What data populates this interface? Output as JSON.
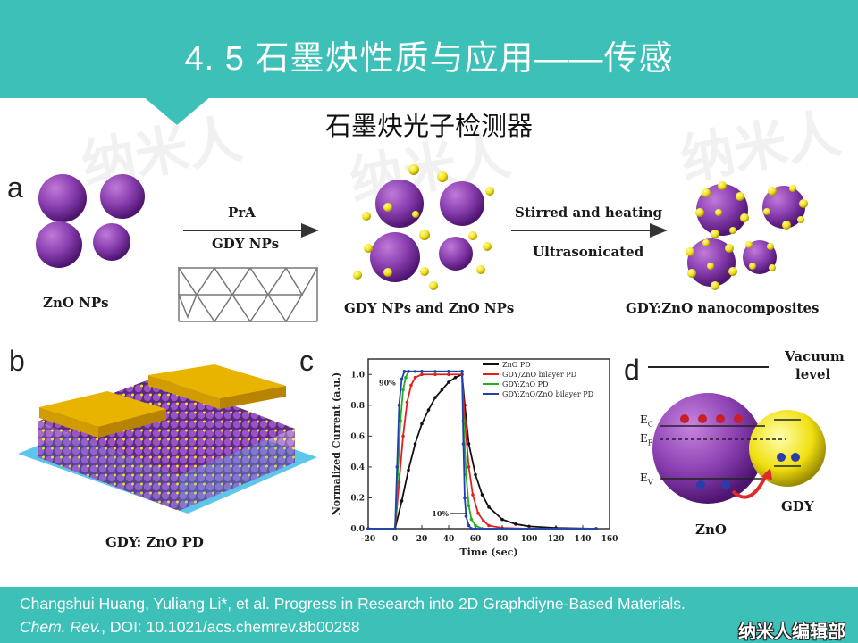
{
  "header": {
    "title": "4. 5  石墨炔性质与应用——传感",
    "subtitle": "石墨炔光子检测器"
  },
  "watermark": "纳米人",
  "panel_a": {
    "letter": "a",
    "znO_label": "ZnO NPs",
    "arrow1_top": "PrA",
    "arrow1_bottom": "GDY NPs",
    "mix_label": "GDY NPs and ZnO NPs",
    "arrow2_top": "Stirred and heating",
    "arrow2_bottom": "Ultrasonicated",
    "composite_label": "GDY:ZnO  nanocomposites"
  },
  "panel_b": {
    "letter": "b",
    "label": "GDY: ZnO PD"
  },
  "panel_c": {
    "letter": "c"
  },
  "panel_d": {
    "letter": "d",
    "vacuum_label_1": "Vacuum",
    "vacuum_label_2": "level",
    "ec": "E",
    "ec_sub": "C",
    "ef": "E",
    "ef_sub": "F",
    "ev": "E",
    "ev_sub": "V",
    "zno": "ZnO",
    "gdy": "GDY"
  },
  "chart_data": {
    "type": "line",
    "xlabel": "Time (sec)",
    "ylabel": "Normalized Current (a.u.)",
    "xlim": [
      -20,
      160
    ],
    "ylim": [
      0,
      1.1
    ],
    "xticks": [
      "-20",
      "0",
      "20",
      "40",
      "60",
      "80",
      "100",
      "120",
      "140",
      "160"
    ],
    "yticks": [
      "0.0",
      "0.2",
      "0.4",
      "0.6",
      "0.8",
      "1.0"
    ],
    "annotations": [
      "90%",
      "10%"
    ],
    "series": [
      {
        "name": "ZnO PD",
        "color": "#111111",
        "x": [
          -20,
          0,
          5,
          10,
          15,
          20,
          25,
          30,
          35,
          40,
          45,
          50,
          52,
          55,
          60,
          65,
          70,
          80,
          90,
          100,
          120,
          150
        ],
        "y": [
          0,
          0,
          0.18,
          0.38,
          0.55,
          0.68,
          0.77,
          0.85,
          0.9,
          0.95,
          0.98,
          1.0,
          0.8,
          0.55,
          0.35,
          0.22,
          0.14,
          0.06,
          0.03,
          0.015,
          0.005,
          0
        ]
      },
      {
        "name": "GDY/ZnO bilayer PD",
        "color": "#e02020",
        "x": [
          -20,
          0,
          3,
          6,
          9,
          12,
          15,
          20,
          30,
          40,
          50,
          52,
          55,
          58,
          62,
          66,
          70,
          80,
          100,
          150
        ],
        "y": [
          0,
          0,
          0.3,
          0.6,
          0.82,
          0.93,
          0.98,
          1.0,
          1.0,
          1.0,
          1.0,
          0.7,
          0.4,
          0.22,
          0.1,
          0.05,
          0.02,
          0.005,
          0,
          0
        ]
      },
      {
        "name": "GDY:ZnO PD",
        "color": "#22b022",
        "x": [
          -20,
          0,
          2,
          4,
          6,
          8,
          10,
          15,
          30,
          50,
          51,
          53,
          55,
          57,
          60,
          65,
          80,
          150
        ],
        "y": [
          0,
          0,
          0.35,
          0.7,
          0.9,
          0.98,
          1.02,
          1.02,
          1.02,
          1.02,
          0.7,
          0.35,
          0.15,
          0.06,
          0.02,
          0,
          0,
          0
        ]
      },
      {
        "name": "GDY:ZnO/ZnO bilayer PD",
        "color": "#2040b0",
        "x": [
          -20,
          0,
          1.5,
          3,
          5,
          7,
          10,
          20,
          40,
          50,
          51,
          52,
          53,
          55,
          57,
          60,
          80,
          150
        ],
        "y": [
          0,
          0,
          0.4,
          0.8,
          0.97,
          1.02,
          1.02,
          1.02,
          1.02,
          1.02,
          0.55,
          0.2,
          0.08,
          0.02,
          0,
          0,
          0,
          0
        ]
      }
    ]
  },
  "footer": {
    "line1": "Changshui  Huang,  Yuliang  Li*,  et  al.  Progress  in  Research  into  2D  Graphdiyne-Based  Materials.",
    "line2_italic": "Chem. Rev.",
    "line2_rest": ", DOI: 10.1021/acs.chemrev.8b00288",
    "brand": "纳米人编辑部"
  }
}
